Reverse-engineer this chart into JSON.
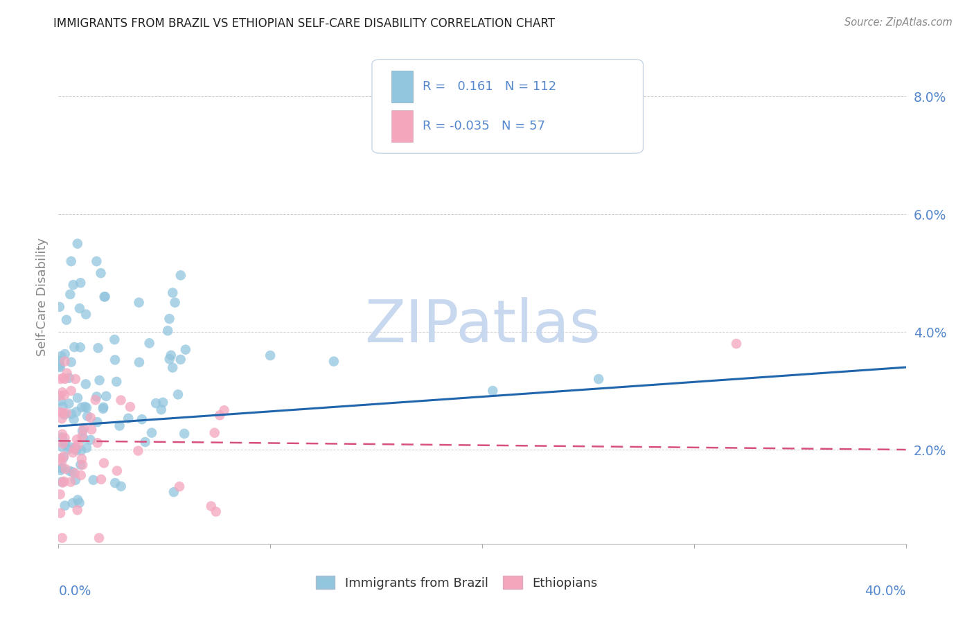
{
  "title": "IMMIGRANTS FROM BRAZIL VS ETHIOPIAN SELF-CARE DISABILITY CORRELATION CHART",
  "source": "Source: ZipAtlas.com",
  "ylabel": "Self-Care Disability",
  "yticks_labels": [
    "2.0%",
    "4.0%",
    "6.0%",
    "8.0%"
  ],
  "ytick_vals": [
    0.02,
    0.04,
    0.06,
    0.08
  ],
  "xlim": [
    0.0,
    0.4
  ],
  "ylim": [
    0.004,
    0.088
  ],
  "brazil_color": "#92c5de",
  "ethiopia_color": "#f4a6bd",
  "brazil_line_color": "#2166ac",
  "ethiopia_line_color": "#d6517d",
  "brazil_trend_x": [
    0.0,
    0.4
  ],
  "brazil_trend_y": [
    0.024,
    0.034
  ],
  "ethiopia_trend_x": [
    0.0,
    0.4
  ],
  "ethiopia_trend_y": [
    0.0215,
    0.02
  ],
  "watermark_text": "ZIPatlas",
  "legend_r1_text": "R =   0.161   N = 112",
  "legend_r2_text": "R = -0.035   N = 57",
  "tick_color": "#5588cc",
  "title_color": "#222222",
  "source_color": "#888888",
  "ylabel_color": "#888888"
}
